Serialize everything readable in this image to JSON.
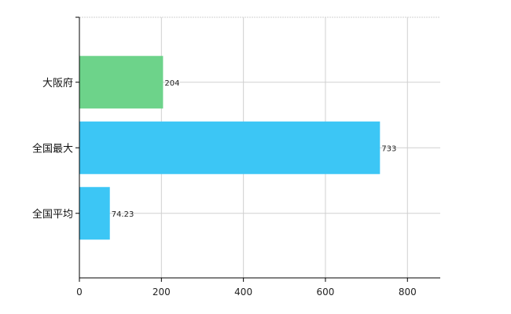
{
  "chart_data": {
    "type": "bar",
    "orientation": "horizontal",
    "categories": [
      "大阪府",
      "全国最大",
      "全国平均"
    ],
    "values": [
      204,
      733,
      74.23
    ],
    "value_labels": [
      "204",
      "733",
      "74.23"
    ],
    "bar_colors": [
      "#6dd38a",
      "#3cc6f5",
      "#3cc6f5"
    ],
    "xlim": [
      0,
      880
    ],
    "x_ticks": [
      0,
      200,
      400,
      600,
      800
    ],
    "x_tick_labels": [
      "0",
      "200",
      "400",
      "600",
      "800"
    ],
    "grid": true,
    "grid_color": "#d0d0d0",
    "title": "",
    "xlabel": "",
    "ylabel": ""
  }
}
